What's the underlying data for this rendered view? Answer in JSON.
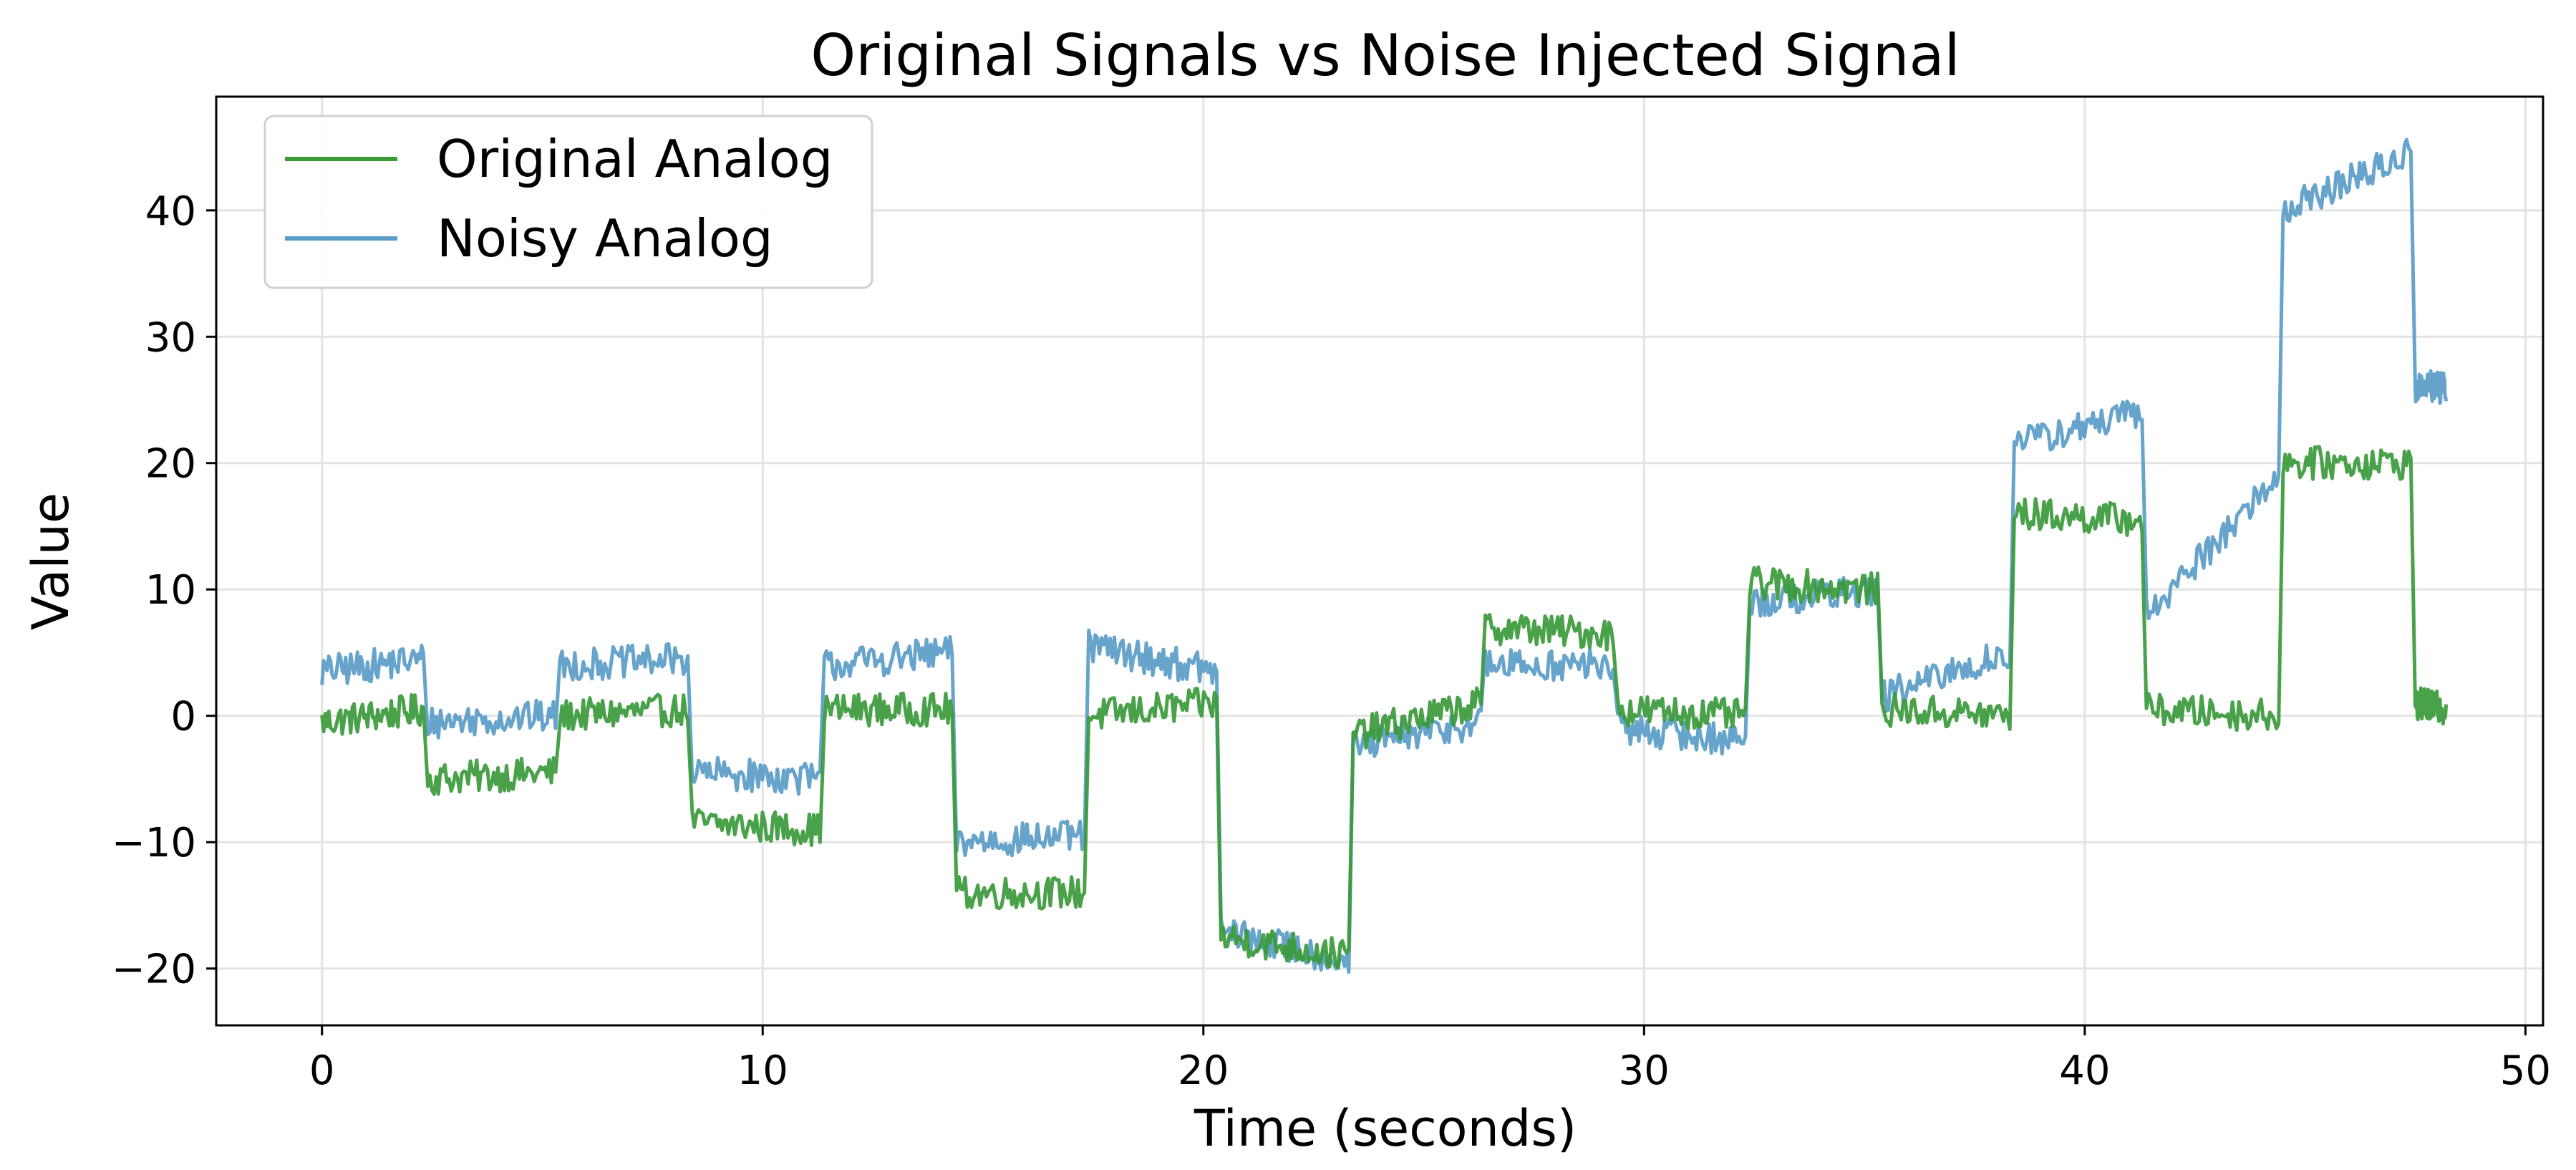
{
  "chart_data": {
    "type": "line",
    "title": "Original Signals vs Noise Injected Signal",
    "xlabel": "Time (seconds)",
    "ylabel": "Value",
    "xlim": [
      -2.4,
      50.4
    ],
    "ylim": [
      -24.5,
      49
    ],
    "xticks": [
      0,
      10,
      20,
      30,
      40,
      50
    ],
    "yticks": [
      -20,
      -10,
      0,
      10,
      20,
      30,
      40
    ],
    "xtick_labels": [
      "0",
      "10",
      "20",
      "30",
      "40",
      "50"
    ],
    "ytick_labels": [
      "−20",
      "−10",
      "0",
      "10",
      "20",
      "30",
      "40"
    ],
    "grid": true,
    "legend_position": "top-left",
    "colors": {
      "original": "#3a9a3a",
      "noisy": "#5a9cc8"
    },
    "series": [
      {
        "name": "Original Analog",
        "color": "#3a9a3a",
        "segments": [
          {
            "start": 0.0,
            "end": 2.3,
            "from": -0.5,
            "to": 0.5
          },
          {
            "start": 2.4,
            "end": 5.3,
            "from": -5.0,
            "to": -4.5
          },
          {
            "start": 5.4,
            "end": 8.3,
            "from": 0.0,
            "to": 0.5
          },
          {
            "start": 8.4,
            "end": 11.3,
            "from": -8.5,
            "to": -9.0
          },
          {
            "start": 11.4,
            "end": 14.3,
            "from": 0.5,
            "to": 0.5
          },
          {
            "start": 14.4,
            "end": 17.3,
            "from": -14.0,
            "to": -14.0
          },
          {
            "start": 17.4,
            "end": 20.3,
            "from": 0.0,
            "to": 1.0
          },
          {
            "start": 20.4,
            "end": 23.3,
            "from": -17.5,
            "to": -19.0
          },
          {
            "start": 23.4,
            "end": 26.3,
            "from": -1.5,
            "to": 1.0
          },
          {
            "start": 26.4,
            "end": 29.3,
            "from": 7.0,
            "to": 6.5
          },
          {
            "start": 29.4,
            "end": 32.3,
            "from": 0.5,
            "to": 0.0
          },
          {
            "start": 32.4,
            "end": 35.3,
            "from": 10.5,
            "to": 10.0
          },
          {
            "start": 35.4,
            "end": 38.3,
            "from": 0.5,
            "to": 0.0
          },
          {
            "start": 38.4,
            "end": 41.3,
            "from": 16.0,
            "to": 15.5
          },
          {
            "start": 41.4,
            "end": 44.4,
            "from": 0.5,
            "to": 0.0
          },
          {
            "start": 44.5,
            "end": 47.4,
            "from": 20.0,
            "to": 20.0
          },
          {
            "start": 47.5,
            "end": 48.2,
            "from": 1.0,
            "to": 0.5
          }
        ]
      },
      {
        "name": "Noisy Analog",
        "color": "#5a9cc8",
        "segments": [
          {
            "start": 0.0,
            "end": 2.3,
            "from": 3.5,
            "to": 4.5
          },
          {
            "start": 2.4,
            "end": 5.3,
            "from": -0.5,
            "to": 0.0
          },
          {
            "start": 5.4,
            "end": 8.3,
            "from": 4.0,
            "to": 4.5
          },
          {
            "start": 8.4,
            "end": 11.3,
            "from": -4.5,
            "to": -5.0
          },
          {
            "start": 11.4,
            "end": 14.3,
            "from": 4.0,
            "to": 5.0
          },
          {
            "start": 14.4,
            "end": 17.3,
            "from": -10.0,
            "to": -9.5
          },
          {
            "start": 17.4,
            "end": 20.3,
            "from": 5.5,
            "to": 3.5
          },
          {
            "start": 20.4,
            "end": 23.3,
            "from": -17.0,
            "to": -19.5
          },
          {
            "start": 23.4,
            "end": 26.3,
            "from": -2.5,
            "to": -0.5
          },
          {
            "start": 26.4,
            "end": 29.3,
            "from": 4.0,
            "to": 4.0
          },
          {
            "start": 29.4,
            "end": 32.3,
            "from": -1.0,
            "to": -2.0
          },
          {
            "start": 32.4,
            "end": 35.3,
            "from": 9.0,
            "to": 10.0
          },
          {
            "start": 35.4,
            "end": 38.3,
            "from": 1.5,
            "to": 5.0
          },
          {
            "start": 38.4,
            "end": 41.3,
            "from": 21.5,
            "to": 24.0
          },
          {
            "start": 41.4,
            "end": 44.4,
            "from": 8.0,
            "to": 19.0
          },
          {
            "start": 44.5,
            "end": 47.4,
            "from": 40.0,
            "to": 44.5
          },
          {
            "start": 47.5,
            "end": 48.2,
            "from": 26.0,
            "to": 26.0
          }
        ]
      }
    ]
  }
}
